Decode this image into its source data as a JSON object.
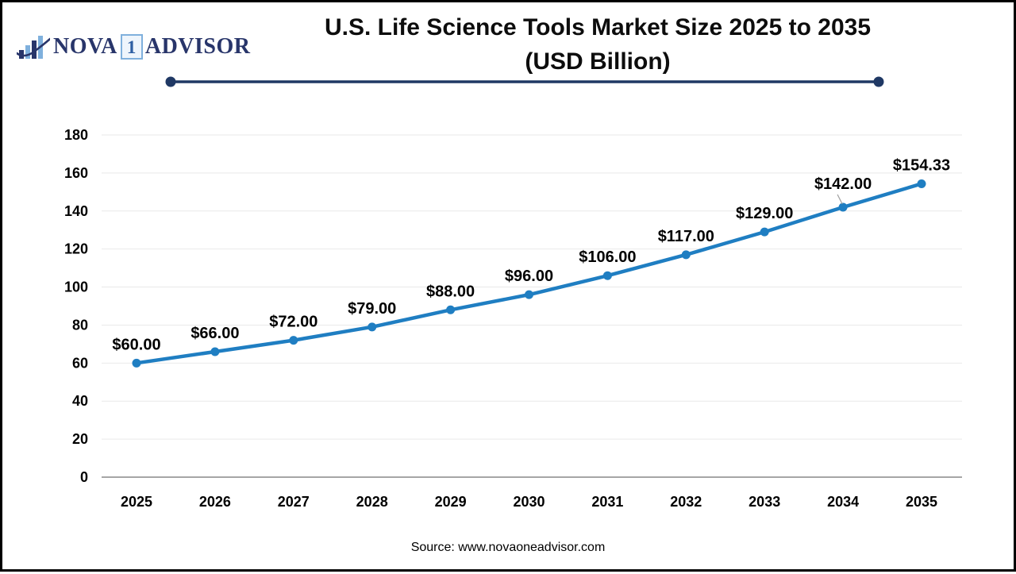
{
  "theme": {
    "line_blue": "#1f7ec2",
    "navy": "#1f3864",
    "logo_navy": "#28356a",
    "logo_lightblue": "#7fb0dd",
    "grid_gray": "#e9e9e9",
    "axis_gray": "#a6a6a6",
    "leader_gray": "#9e9e9e",
    "text_black": "#000000"
  },
  "logo": {
    "part1": "NOVA",
    "boxed": "1",
    "part2": "ADVISOR"
  },
  "title": {
    "line1": "U.S. Life Science Tools Market Size 2025 to 2035",
    "line2": "(USD Billion)"
  },
  "source": {
    "text": "Source: www.novaoneadvisor.com"
  },
  "chart_data": {
    "type": "line",
    "title": "U.S. Life Science Tools Market Size 2025 to 2035 (USD Billion)",
    "x": [
      "2025",
      "2026",
      "2027",
      "2028",
      "2029",
      "2030",
      "2031",
      "2032",
      "2033",
      "2034",
      "2035"
    ],
    "values": [
      60.0,
      66.0,
      72.0,
      79.0,
      88.0,
      96.0,
      106.0,
      117.0,
      129.0,
      142.0,
      154.33
    ],
    "point_labels": [
      "$60.00",
      "$66.00",
      "$72.00",
      "$79.00",
      "$88.00",
      "$96.00",
      "$106.00",
      "$117.00",
      "$129.00",
      "$142.00",
      "$154.33"
    ],
    "xlabel": "",
    "ylabel": "",
    "ylim": [
      0,
      180
    ],
    "yticks": [
      0,
      20,
      40,
      60,
      80,
      100,
      120,
      140,
      160,
      180
    ],
    "grid": true,
    "legend": false,
    "marker": "circle",
    "callout_index": 9
  }
}
